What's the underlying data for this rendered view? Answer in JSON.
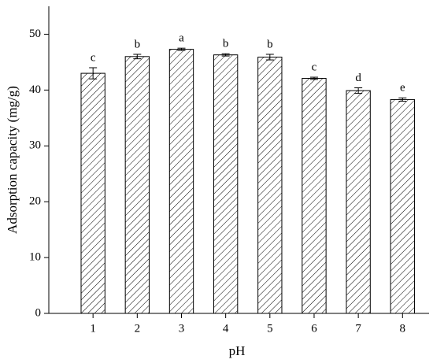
{
  "chart_data": {
    "type": "bar",
    "x_label": "pH",
    "y_label": "Adsorption capacity (mg/g)",
    "x": [
      1,
      2,
      3,
      4,
      5,
      6,
      7,
      8
    ],
    "values": [
      43.0,
      46.0,
      47.3,
      46.3,
      45.9,
      42.1,
      39.9,
      38.3
    ],
    "errors": [
      1.0,
      0.4,
      0.2,
      0.2,
      0.5,
      0.2,
      0.5,
      0.3
    ],
    "labels": [
      "c",
      "b",
      "a",
      "b",
      "b",
      "c",
      "d",
      "e"
    ],
    "color": "#000000",
    "xlim": [
      0,
      8.6
    ],
    "xticks": [
      1,
      2,
      3,
      4,
      5,
      6,
      7,
      8
    ],
    "ylim": [
      0,
      55
    ],
    "yticks": [
      0,
      10,
      20,
      30,
      40,
      50
    ]
  }
}
